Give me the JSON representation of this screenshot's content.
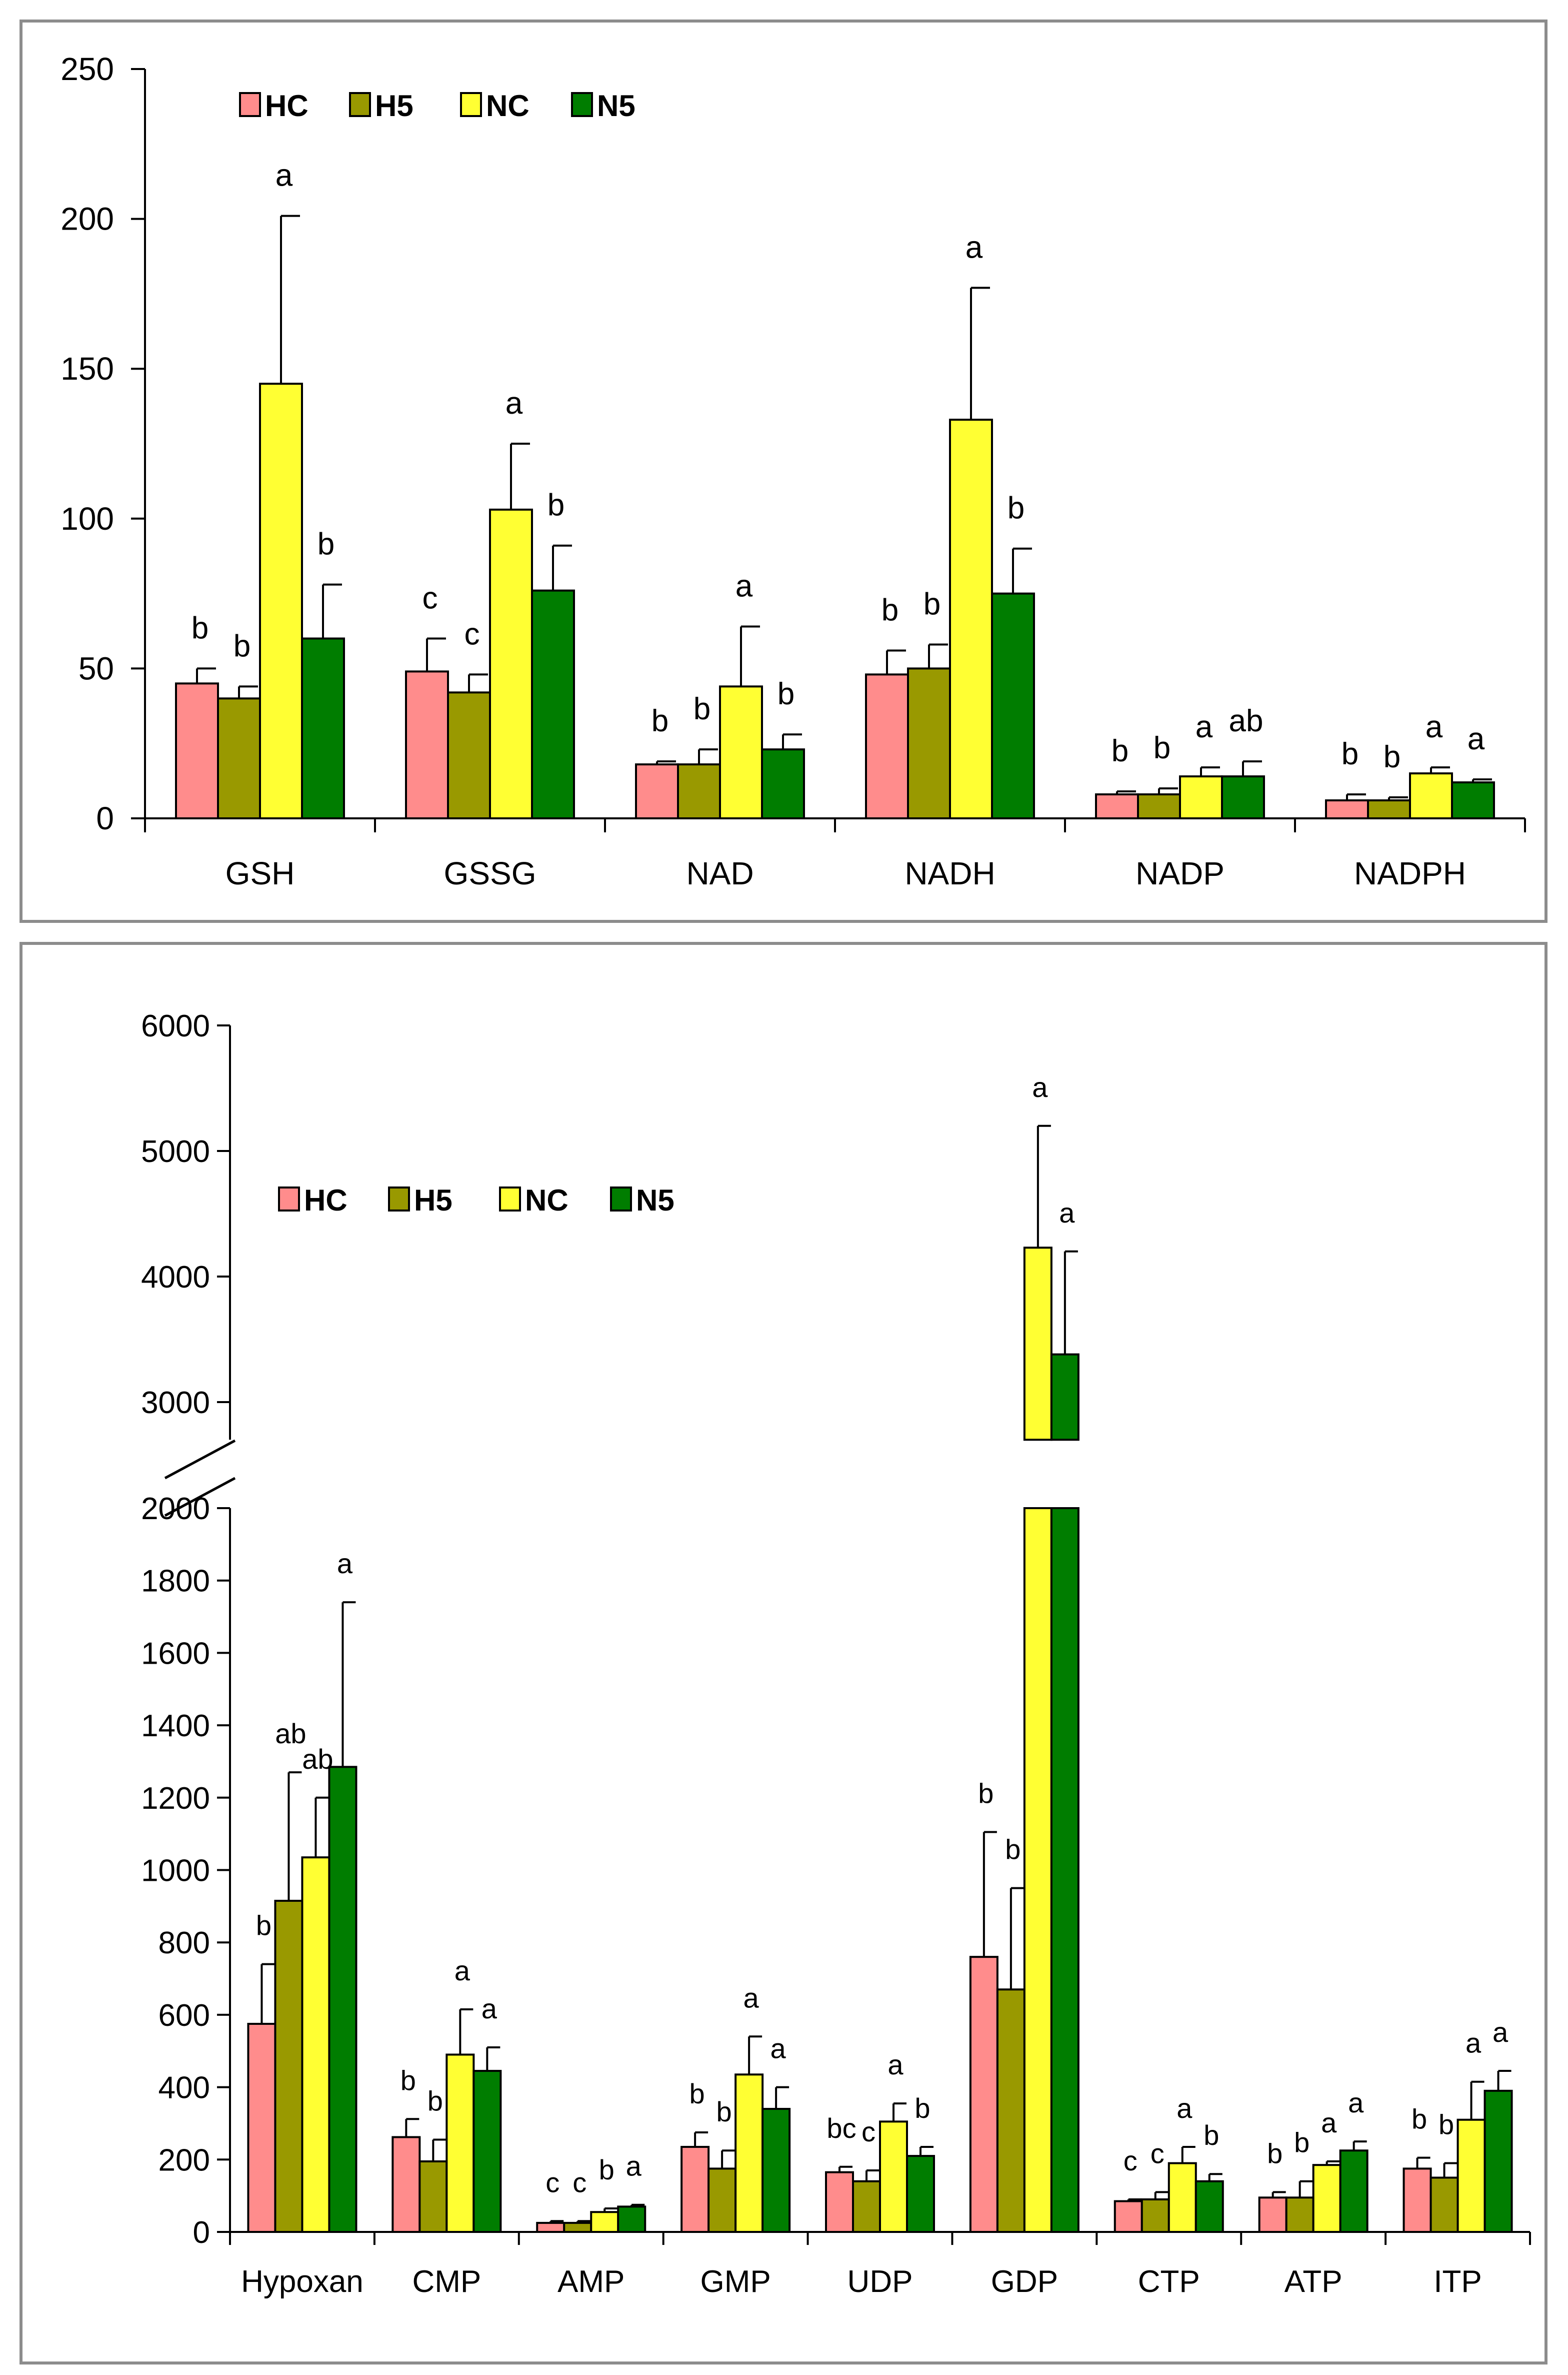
{
  "chart_data": [
    {
      "type": "bar",
      "title": "",
      "xlabel": "",
      "ylabel": "",
      "ylim": [
        0,
        250
      ],
      "yticks": [
        "0",
        "50",
        "100",
        "150",
        "200",
        "250"
      ],
      "categories": [
        "GSH",
        "GSSG",
        "NAD",
        "NADH",
        "NADP",
        "NADPH"
      ],
      "legend_position": "top-left",
      "series": [
        {
          "name": "HC",
          "color": "#FF8C8C",
          "values": [
            45,
            49,
            18,
            48,
            8,
            6
          ],
          "errors": [
            5,
            11,
            1,
            8,
            1,
            2
          ],
          "letters": [
            "b",
            "c",
            "b",
            "b",
            "b",
            "b"
          ]
        },
        {
          "name": "H5",
          "color": "#999900",
          "values": [
            40,
            42,
            18,
            50,
            8,
            6
          ],
          "errors": [
            4,
            6,
            5,
            8,
            2,
            1
          ],
          "letters": [
            "b",
            "c",
            "b",
            "b",
            "b",
            "b"
          ]
        },
        {
          "name": "NC",
          "color": "#FFFF33",
          "values": [
            145,
            103,
            44,
            133,
            14,
            15
          ],
          "errors": [
            56,
            22,
            20,
            44,
            3,
            2
          ],
          "letters": [
            "a",
            "a",
            "a",
            "a",
            "a",
            "a"
          ]
        },
        {
          "name": "N5",
          "color": "#007D00",
          "values": [
            60,
            76,
            23,
            75,
            14,
            12
          ],
          "errors": [
            18,
            15,
            5,
            15,
            5,
            1
          ],
          "letters": [
            "b",
            "b",
            "b",
            "b",
            "ab",
            "a"
          ]
        }
      ]
    },
    {
      "type": "bar",
      "title": "",
      "xlabel": "",
      "ylabel": "",
      "ylim": [
        0,
        6000
      ],
      "axis_break": [
        2000,
        2700
      ],
      "yticks_lower": [
        "0",
        "200",
        "400",
        "600",
        "800",
        "1000",
        "1200",
        "1400",
        "1600",
        "1800",
        "2000"
      ],
      "yticks_upper": [
        "3000",
        "4000",
        "5000",
        "6000"
      ],
      "categories": [
        "Hypoxan",
        "CMP",
        "AMP",
        "GMP",
        "UDP",
        "GDP",
        "CTP",
        "ATP",
        "ITP"
      ],
      "legend_position": "top-left",
      "series": [
        {
          "name": "HC",
          "color": "#FF8C8C",
          "values": [
            575,
            262,
            25,
            235,
            165,
            760,
            85,
            95,
            175
          ],
          "errors": [
            165,
            50,
            5,
            40,
            15,
            345,
            5,
            15,
            30
          ],
          "letters": [
            "b",
            "b",
            "c",
            "b",
            "bc",
            "b",
            "c",
            "b",
            "b"
          ]
        },
        {
          "name": "H5",
          "color": "#999900",
          "values": [
            915,
            195,
            25,
            175,
            140,
            670,
            90,
            95,
            150
          ],
          "errors": [
            355,
            60,
            5,
            50,
            30,
            280,
            20,
            45,
            40
          ],
          "letters": [
            "ab",
            "b",
            "c",
            "b",
            "c",
            "b",
            "c",
            "b",
            "b"
          ]
        },
        {
          "name": "NC",
          "color": "#FFFF33",
          "values": [
            1035,
            490,
            55,
            435,
            305,
            4230,
            190,
            185,
            310
          ],
          "errors": [
            165,
            125,
            10,
            105,
            50,
            970,
            45,
            10,
            105
          ],
          "letters": [
            "ab",
            "a",
            "b",
            "a",
            "a",
            "a",
            "a",
            "a",
            "a"
          ]
        },
        {
          "name": "N5",
          "color": "#007D00",
          "values": [
            1285,
            445,
            70,
            340,
            210,
            3380,
            140,
            225,
            390
          ],
          "errors": [
            455,
            65,
            5,
            60,
            25,
            820,
            20,
            25,
            55
          ],
          "letters": [
            "a",
            "a",
            "a",
            "a",
            "b",
            "a",
            "b",
            "a",
            "a"
          ]
        }
      ]
    }
  ]
}
